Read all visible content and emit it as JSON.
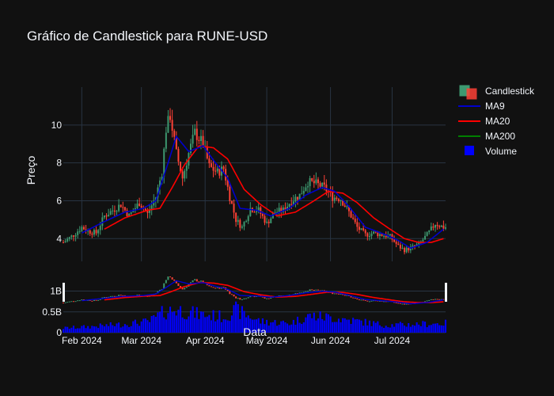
{
  "title": "Gráfico de Candlestick para RUNE-USD",
  "colors": {
    "background": "#111111",
    "grid": "#283442",
    "text": "#f2f5fa",
    "increasing": "#3d9970",
    "decreasing": "#ff4136",
    "ma9": "#0000cc",
    "ma20": "#ff0000",
    "ma200": "#008000",
    "volume": "#0000ff"
  },
  "chart_data": {
    "type": "candlestick",
    "title": "Gráfico de Candlestick para RUNE-USD",
    "xlabel": "Data",
    "ylabel": "Preço",
    "x_ticks": [
      "Feb 2024",
      "Mar 2024",
      "Apr 2024",
      "May 2024",
      "Jun 2024",
      "Jul 2024"
    ],
    "xlim": [
      "2024-01-23",
      "2024-07-27"
    ],
    "price_axis": {
      "ticks": [
        4,
        6,
        8,
        10
      ],
      "ylim": [
        2.8,
        12
      ]
    },
    "volume_axis": {
      "tick_labels": [
        "0",
        "0.5B",
        "1B"
      ],
      "ticks": [
        0,
        0.5,
        1
      ],
      "ylim": [
        0,
        1.2
      ]
    },
    "legend": {
      "placement": "top-right",
      "entries": [
        "Candlestick",
        "MA9",
        "MA20",
        "MA200",
        "Volume"
      ]
    },
    "grid": true,
    "price_anchors": [
      [
        "2024-01-23",
        3.8
      ],
      [
        "2024-01-28",
        4.2
      ],
      [
        "2024-02-01",
        4.6
      ],
      [
        "2024-02-04",
        4.4
      ],
      [
        "2024-02-08",
        4.3
      ],
      [
        "2024-02-12",
        5.2
      ],
      [
        "2024-02-16",
        5.5
      ],
      [
        "2024-02-20",
        5.8
      ],
      [
        "2024-02-24",
        5.2
      ],
      [
        "2024-02-29",
        5.9
      ],
      [
        "2024-03-04",
        5.3
      ],
      [
        "2024-03-08",
        6.2
      ],
      [
        "2024-03-11",
        7.5
      ],
      [
        "2024-03-13",
        9.8
      ],
      [
        "2024-03-15",
        10.5
      ],
      [
        "2024-03-18",
        8.5
      ],
      [
        "2024-03-21",
        7.2
      ],
      [
        "2024-03-24",
        8.5
      ],
      [
        "2024-03-27",
        9.6
      ],
      [
        "2024-03-31",
        9.0
      ],
      [
        "2024-04-03",
        7.8
      ],
      [
        "2024-04-07",
        7.5
      ],
      [
        "2024-04-10",
        7.7
      ],
      [
        "2024-04-13",
        6.2
      ],
      [
        "2024-04-16",
        5.0
      ],
      [
        "2024-04-19",
        4.6
      ],
      [
        "2024-04-23",
        5.6
      ],
      [
        "2024-04-27",
        5.5
      ],
      [
        "2024-05-01",
        4.8
      ],
      [
        "2024-05-05",
        5.4
      ],
      [
        "2024-05-09",
        5.5
      ],
      [
        "2024-05-13",
        6.0
      ],
      [
        "2024-05-17",
        6.3
      ],
      [
        "2024-05-21",
        7.0
      ],
      [
        "2024-05-25",
        6.9
      ],
      [
        "2024-05-29",
        6.7
      ],
      [
        "2024-06-02",
        6.2
      ],
      [
        "2024-06-06",
        6.1
      ],
      [
        "2024-06-10",
        5.4
      ],
      [
        "2024-06-14",
        4.6
      ],
      [
        "2024-06-18",
        4.2
      ],
      [
        "2024-06-22",
        4.3
      ],
      [
        "2024-06-26",
        4.2
      ],
      [
        "2024-06-30",
        4.1
      ],
      [
        "2024-07-04",
        3.6
      ],
      [
        "2024-07-07",
        3.4
      ],
      [
        "2024-07-10",
        3.5
      ],
      [
        "2024-07-14",
        3.7
      ],
      [
        "2024-07-18",
        4.2
      ],
      [
        "2024-07-22",
        4.8
      ],
      [
        "2024-07-26",
        4.6
      ]
    ],
    "ma9_anchors": [
      [
        "2024-02-01",
        4.3
      ],
      [
        "2024-02-12",
        4.9
      ],
      [
        "2024-02-22",
        5.4
      ],
      [
        "2024-03-02",
        5.6
      ],
      [
        "2024-03-08",
        6.0
      ],
      [
        "2024-03-14",
        8.0
      ],
      [
        "2024-03-18",
        9.4
      ],
      [
        "2024-03-24",
        8.6
      ],
      [
        "2024-03-31",
        8.9
      ],
      [
        "2024-04-06",
        8.0
      ],
      [
        "2024-04-12",
        7.2
      ],
      [
        "2024-04-18",
        5.6
      ],
      [
        "2024-04-26",
        5.5
      ],
      [
        "2024-05-03",
        5.2
      ],
      [
        "2024-05-12",
        5.6
      ],
      [
        "2024-05-20",
        6.3
      ],
      [
        "2024-05-28",
        6.7
      ],
      [
        "2024-06-03",
        6.5
      ],
      [
        "2024-06-10",
        5.7
      ],
      [
        "2024-06-18",
        4.6
      ],
      [
        "2024-06-28",
        4.2
      ],
      [
        "2024-07-04",
        3.9
      ],
      [
        "2024-07-10",
        3.5
      ],
      [
        "2024-07-18",
        3.8
      ],
      [
        "2024-07-26",
        4.5
      ]
    ],
    "ma20_anchors": [
      [
        "2024-02-12",
        4.5
      ],
      [
        "2024-02-22",
        5.1
      ],
      [
        "2024-03-04",
        5.5
      ],
      [
        "2024-03-10",
        5.6
      ],
      [
        "2024-03-16",
        6.7
      ],
      [
        "2024-03-22",
        7.9
      ],
      [
        "2024-03-29",
        8.9
      ],
      [
        "2024-04-05",
        8.8
      ],
      [
        "2024-04-12",
        8.2
      ],
      [
        "2024-04-20",
        6.6
      ],
      [
        "2024-04-28",
        5.8
      ],
      [
        "2024-05-06",
        5.2
      ],
      [
        "2024-05-15",
        5.4
      ],
      [
        "2024-05-24",
        6.0
      ],
      [
        "2024-05-31",
        6.5
      ],
      [
        "2024-06-07",
        6.4
      ],
      [
        "2024-06-14",
        5.9
      ],
      [
        "2024-06-22",
        5.1
      ],
      [
        "2024-06-30",
        4.5
      ],
      [
        "2024-07-07",
        4.0
      ],
      [
        "2024-07-14",
        3.8
      ],
      [
        "2024-07-20",
        3.8
      ],
      [
        "2024-07-26",
        4.0
      ]
    ],
    "volume_anchors": [
      [
        "2024-01-23",
        0.12
      ],
      [
        "2024-02-05",
        0.16
      ],
      [
        "2024-02-20",
        0.22
      ],
      [
        "2024-03-05",
        0.3
      ],
      [
        "2024-03-12",
        0.55
      ],
      [
        "2024-03-18",
        0.62
      ],
      [
        "2024-03-28",
        0.5
      ],
      [
        "2024-04-10",
        0.42
      ],
      [
        "2024-04-16",
        0.6
      ],
      [
        "2024-04-28",
        0.3
      ],
      [
        "2024-05-12",
        0.25
      ],
      [
        "2024-05-22",
        0.45
      ],
      [
        "2024-06-02",
        0.4
      ],
      [
        "2024-06-15",
        0.3
      ],
      [
        "2024-06-28",
        0.2
      ],
      [
        "2024-07-10",
        0.22
      ],
      [
        "2024-07-26",
        0.25
      ]
    ]
  }
}
